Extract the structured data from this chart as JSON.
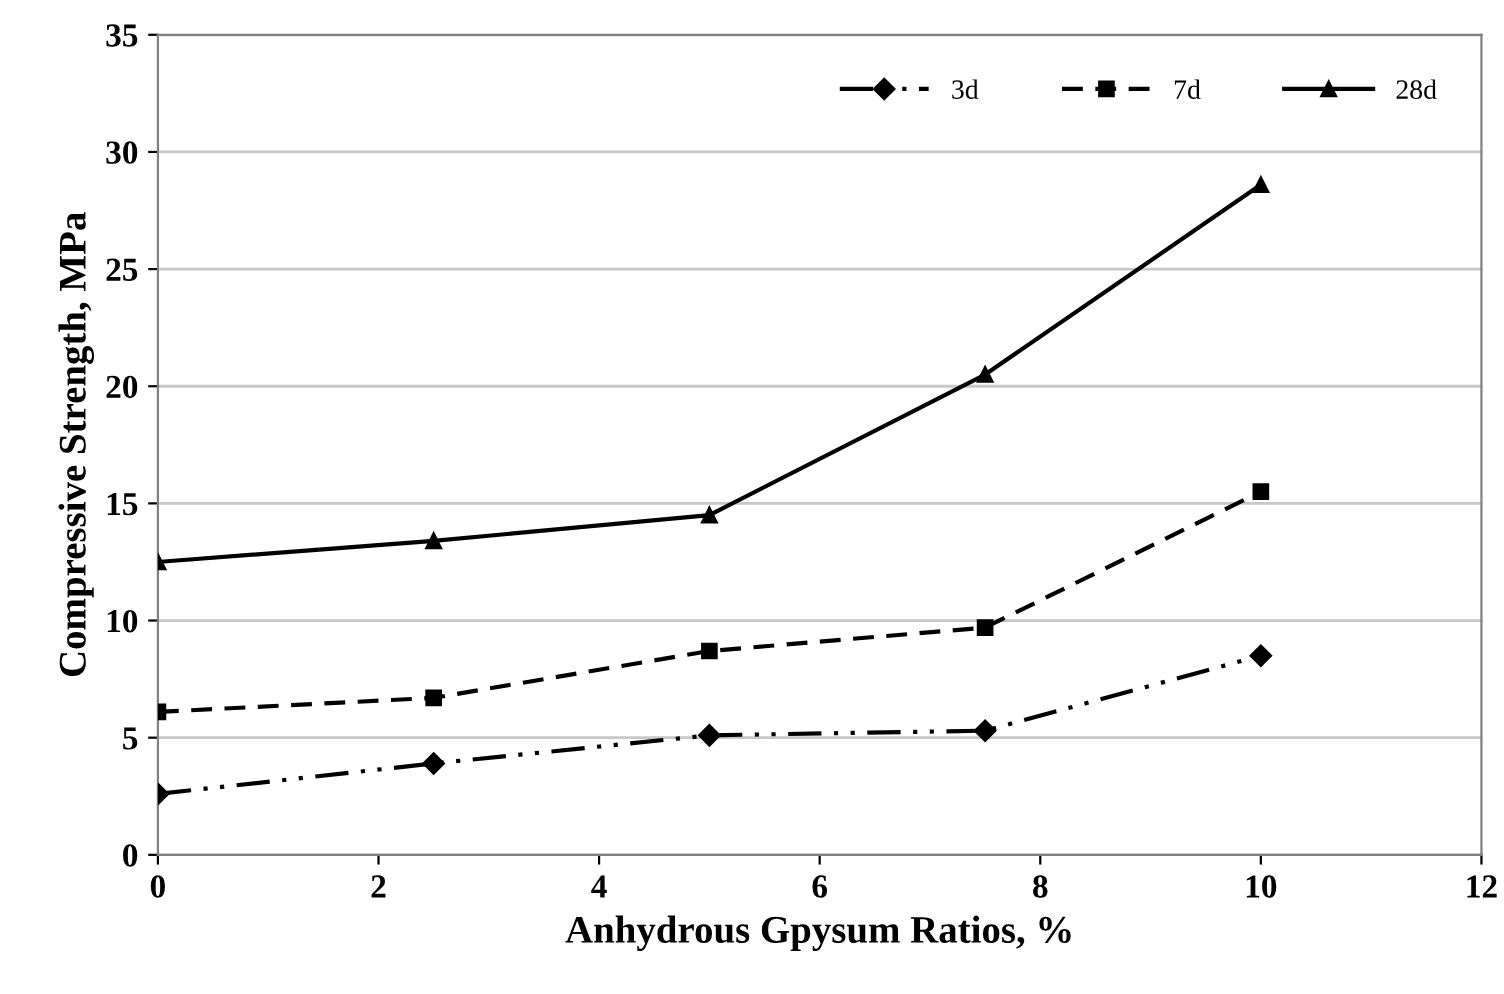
{
  "chart_data": {
    "type": "line",
    "xlabel": "Anhydrous Gpysum Ratios, %",
    "ylabel": "Compressive Strength, MPa",
    "x": [
      0,
      2.5,
      5,
      7.5,
      10
    ],
    "series": [
      {
        "name": "3d",
        "color": "#000000",
        "values": [
          2.6,
          3.9,
          5.1,
          5.3,
          8.5
        ],
        "marker": "diamond",
        "line_style": "dashdot"
      },
      {
        "name": "7d",
        "color": "#000000",
        "values": [
          6.1,
          6.7,
          8.7,
          9.7,
          15.5
        ],
        "marker": "square",
        "line_style": "dashed"
      },
      {
        "name": "28d",
        "color": "#000000",
        "values": [
          12.5,
          13.4,
          14.5,
          20.5,
          28.6
        ],
        "marker": "triangle",
        "line_style": "solid"
      }
    ],
    "xlim": [
      0,
      12
    ],
    "xticks": [
      0,
      2,
      4,
      6,
      8,
      10,
      12
    ],
    "ylim": [
      0,
      35
    ],
    "yticks": [
      0,
      5,
      10,
      15,
      20,
      25,
      30,
      35
    ],
    "grid": "y",
    "legend": "top right"
  }
}
